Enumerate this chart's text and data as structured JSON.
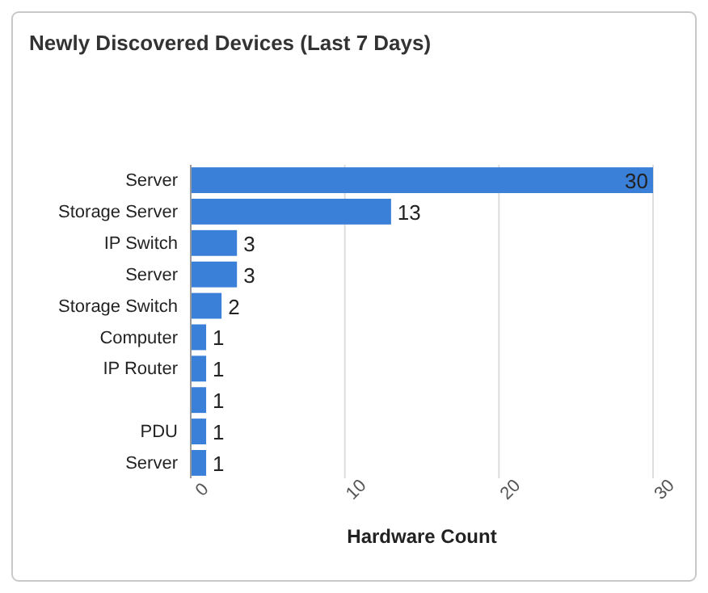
{
  "chart_data": {
    "type": "bar",
    "orientation": "horizontal",
    "title": "Newly Discovered Devices (Last 7 Days)",
    "xlabel": "Hardware Count",
    "categories": [
      "Server",
      "Storage Server",
      "IP Switch",
      "Server",
      "Storage Switch",
      "Computer",
      "IP Router",
      null,
      "PDU",
      "Server"
    ],
    "values": [
      30,
      13,
      3,
      3,
      2,
      1,
      1,
      1,
      1,
      1
    ],
    "color": "#3a7fd8",
    "xlim": [
      0,
      30
    ],
    "xticks": [
      0,
      10,
      20,
      30
    ],
    "grid": "x",
    "data_labels": true
  }
}
